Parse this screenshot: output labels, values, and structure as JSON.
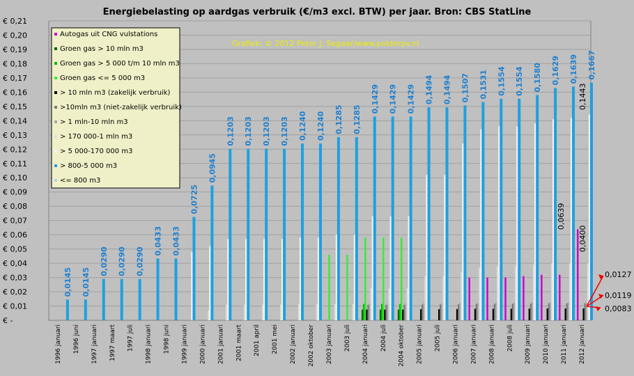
{
  "chart_data": {
    "type": "bar",
    "title": "Energiebelasting op aardgas verbruik (€/m3 excl. BTW) per jaar. Bron: CBS StatLine",
    "watermark": "Grafiek: © 2012 Peter J. Segaar/www.polderpv.nl",
    "xlabel": "",
    "ylabel": "",
    "ylim": [
      0,
      0.21
    ],
    "yticks": [
      "€ -",
      "€ 0,01",
      "€ 0,02",
      "€ 0,03",
      "€ 0,04",
      "€ 0,05",
      "€ 0,06",
      "€ 0,07",
      "€ 0,08",
      "€ 0,09",
      "€ 0,10",
      "€ 0,11",
      "€ 0,12",
      "€ 0,13",
      "€ 0,14",
      "€ 0,15",
      "€ 0,16",
      "€ 0,17",
      "€ 0,18",
      "€ 0,19",
      "€ 0,20",
      "€ 0,21"
    ],
    "grid": true,
    "legend_position": "top-left",
    "categories": [
      "1996 januari",
      "1996 juni",
      "1997 januari",
      "1997 maart",
      "1997 juli",
      "1998 januari",
      "1998 juni",
      "1999 januari",
      "2000 januari",
      "2001 januari",
      "2001 maart",
      "2001 april",
      "2001 mei",
      "2002 januari",
      "2002 oktober",
      "2003 januari",
      "2003 juli",
      "2004 januari",
      "2004 juli",
      "2004 oktober",
      "2005 januari",
      "2005 juli",
      "2006 januari",
      "2007 januari",
      "2008 januari",
      "2008 juli",
      "2009 januari",
      "2010 januari",
      "2011 januari",
      "2012 januari"
    ],
    "series": [
      {
        "name": "Autogas uit CNG vulstations",
        "color": "#cc00cc",
        "values": [
          null,
          null,
          null,
          null,
          null,
          null,
          null,
          null,
          null,
          null,
          null,
          null,
          null,
          null,
          null,
          null,
          null,
          null,
          null,
          null,
          null,
          null,
          null,
          0.03,
          0.03,
          0.03,
          0.031,
          0.032,
          0.032,
          0.0639
        ]
      },
      {
        "name": "Groen gas > 10 mln m3",
        "color": "#006600",
        "values": [
          null,
          null,
          null,
          null,
          null,
          null,
          null,
          null,
          null,
          null,
          null,
          null,
          null,
          null,
          null,
          null,
          null,
          0.0075,
          0.0075,
          0.0075,
          null,
          null,
          null,
          null,
          null,
          null,
          null,
          null,
          null,
          null
        ]
      },
      {
        "name": "Groen gas > 5 000 t/m 10 mln m3",
        "color": "#00bb00",
        "values": [
          null,
          null,
          null,
          null,
          null,
          null,
          null,
          null,
          null,
          null,
          null,
          null,
          null,
          null,
          null,
          null,
          null,
          0.0115,
          0.0115,
          0.0115,
          null,
          null,
          null,
          null,
          null,
          null,
          null,
          null,
          null,
          null
        ]
      },
      {
        "name": "Groen gas <= 5 000 m3",
        "color": "#33ee33",
        "values": [
          null,
          null,
          null,
          null,
          null,
          null,
          null,
          null,
          null,
          null,
          null,
          null,
          null,
          null,
          null,
          0.046,
          0.046,
          0.058,
          0.058,
          0.058,
          null,
          null,
          null,
          null,
          null,
          null,
          null,
          null,
          null,
          null
        ]
      },
      {
        "name": "> 10 mln m3 (zakelijk verbruik)",
        "color": "#000000",
        "values": [
          null,
          null,
          null,
          null,
          null,
          null,
          null,
          null,
          null,
          null,
          null,
          null,
          null,
          null,
          null,
          null,
          null,
          0.0075,
          0.0075,
          0.0075,
          0.0078,
          0.0078,
          0.0079,
          0.0081,
          0.0081,
          0.0081,
          0.0082,
          0.0083,
          0.0083,
          0.0083
        ]
      },
      {
        "name": ">10mln m3 (niet-zakelijk verbruik)",
        "color": "#777777",
        "values": [
          null,
          null,
          null,
          null,
          null,
          null,
          null,
          null,
          null,
          null,
          null,
          null,
          null,
          null,
          null,
          null,
          null,
          0.0108,
          0.0108,
          0.0108,
          0.0111,
          0.0111,
          0.0112,
          0.0115,
          0.0116,
          0.0116,
          0.0117,
          0.0119,
          0.0119,
          0.0119
        ]
      },
      {
        "name": "> 1 mln-10 mln m3",
        "color": "#a8a8a8",
        "values": [
          null,
          null,
          null,
          null,
          null,
          null,
          null,
          null,
          null,
          null,
          null,
          null,
          null,
          null,
          null,
          null,
          null,
          0.0118,
          0.0118,
          0.0118,
          0.0121,
          0.0121,
          0.0122,
          0.0124,
          0.0125,
          0.0125,
          0.0126,
          0.0127,
          0.0127,
          0.0127
        ]
      },
      {
        "name": "> 170 000-1 mln m3",
        "color": "#dcdcdc",
        "values": [
          null,
          null,
          null,
          null,
          null,
          null,
          null,
          null,
          0.007,
          0.011,
          0.011,
          0.011,
          0.011,
          0.0113,
          0.0113,
          0.0115,
          0.0115,
          0.0225,
          0.0225,
          0.0225,
          0.031,
          0.031,
          0.034,
          0.037,
          0.038,
          0.038,
          0.039,
          0.04,
          0.04,
          0.04
        ]
      },
      {
        "name": "> 5 000-170 000 m3",
        "color": "#f4f4f4",
        "values": [
          null,
          null,
          null,
          null,
          null,
          null,
          null,
          0.048,
          0.052,
          0.057,
          0.057,
          0.057,
          0.057,
          0.058,
          0.058,
          0.06,
          0.06,
          0.073,
          0.073,
          0.073,
          0.102,
          0.102,
          0.124,
          0.134,
          0.136,
          0.136,
          0.138,
          0.141,
          0.142,
          0.1443
        ]
      },
      {
        "name": "> 800-5 000 m3",
        "color": "#1ea0e0",
        "values": [
          0.0145,
          0.0145,
          0.029,
          0.029,
          0.029,
          0.0433,
          0.0433,
          0.0725,
          0.0945,
          0.1203,
          0.1203,
          0.1203,
          0.1203,
          0.124,
          0.124,
          0.1285,
          0.1285,
          0.1429,
          0.1429,
          0.1429,
          0.1494,
          0.1494,
          0.1507,
          0.1531,
          0.1554,
          0.1554,
          0.158,
          0.1629,
          0.1639,
          0.1667
        ]
      },
      {
        "name": "<= 800 m3",
        "color": "#a8d8ee",
        "values": [
          null,
          null,
          null,
          null,
          null,
          null,
          null,
          null,
          null,
          null,
          null,
          null,
          null,
          null,
          null,
          null,
          null,
          null,
          null,
          null,
          null,
          null,
          null,
          null,
          null,
          null,
          null,
          null,
          null,
          null
        ]
      }
    ],
    "data_labels": [
      "0,0145",
      "0,0145",
      "0,0290",
      "0,0290",
      "0,0290",
      "0,0433",
      "0,0433",
      "0,0725",
      "0,0945",
      "0,1203",
      "0,1203",
      "0,1203",
      "0,1203",
      "0,1240",
      "0,1240",
      "0,1285",
      "0,1285",
      "0,1429",
      "0,1429",
      "0,1429",
      "0,1494",
      "0,1494",
      "0,1507",
      "0,1531",
      "0,1554",
      "0,1554",
      "0,1580",
      "0,1629",
      "0,1639",
      "0,1667"
    ],
    "annotations": [
      {
        "text": "0,0639"
      },
      {
        "text": "0,1443"
      },
      {
        "text": "0,0400"
      },
      {
        "text": "0,0127"
      },
      {
        "text": "0,0119"
      },
      {
        "text": "0,0083"
      }
    ]
  }
}
